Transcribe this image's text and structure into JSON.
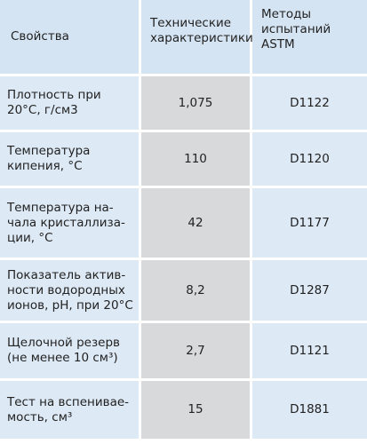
{
  "table": {
    "header": [
      [
        "Свойства"
      ],
      [
        "Технические",
        "характеристики"
      ],
      [
        "Методы",
        "испытаний",
        "ASTM"
      ]
    ],
    "rows": [
      [
        [
          "Плотность при",
          "20°С, г/см3"
        ],
        [
          "1,075"
        ],
        [
          "D1122"
        ]
      ],
      [
        [
          "Температура",
          "кипения, °С"
        ],
        [
          "110"
        ],
        [
          "D1120"
        ]
      ],
      [
        [
          "Температура на-",
          "чала кристаллиза-",
          "ции, °С"
        ],
        [
          "42"
        ],
        [
          "D1177"
        ]
      ],
      [
        [
          "Показатель актив-",
          "ности водородных",
          "ионов, pH, при 20°С"
        ],
        [
          "8,2"
        ],
        [
          "D1287"
        ]
      ],
      [
        [
          "Щелочной резерв",
          "(не менее 10 см³)"
        ],
        [
          "2,7"
        ],
        [
          "D1121"
        ]
      ],
      [
        [
          "Тест на вспенивае-",
          "мость, см³"
        ],
        [
          "15"
        ],
        [
          "D1881"
        ]
      ]
    ]
  }
}
